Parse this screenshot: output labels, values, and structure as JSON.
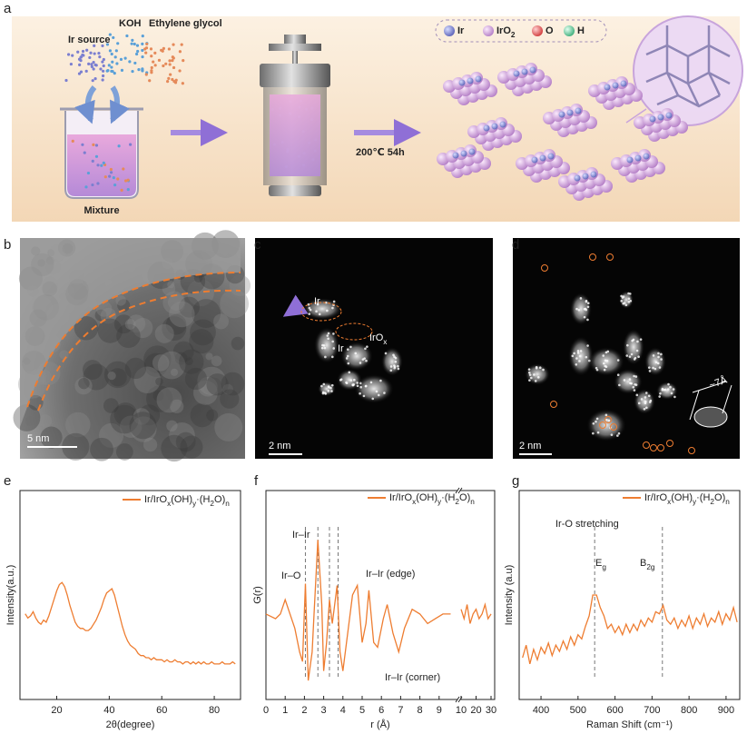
{
  "panel_labels": [
    "a",
    "b",
    "c",
    "d",
    "e",
    "f",
    "g"
  ],
  "schematic": {
    "reagents": [
      "Ir source",
      "KOH",
      "Ethylene glycol"
    ],
    "mixture": "Mixture",
    "condition": "200℃ 54h",
    "legend": [
      "Ir",
      "IrO2",
      "O",
      "H"
    ]
  },
  "micrographs": [
    {
      "scale_bar": "5 nm"
    },
    {
      "scale_bar": "2 nm",
      "labels": [
        "Ir",
        "IrOx",
        "Ir"
      ]
    },
    {
      "scale_bar": "2 nm",
      "labels": [
        "~7Å"
      ]
    }
  ],
  "chart_data": [
    {
      "type": "line",
      "x_label": "2θ(degree)",
      "y_label": "Intensity(a.u.)",
      "xlim": [
        6,
        90
      ],
      "xticks": [
        20,
        40,
        60,
        80
      ],
      "ylim": [
        0,
        100
      ],
      "series": [
        {
          "name": "Ir/IrOx(OH)y·(H2O)n",
          "color": "#ee7d31",
          "x": [
            8,
            9,
            10,
            11,
            12,
            13,
            14,
            15,
            16,
            17,
            18,
            19,
            20,
            21,
            22,
            23,
            24,
            25,
            26,
            27,
            28,
            29,
            30,
            31,
            32,
            33,
            34,
            35,
            36,
            37,
            38,
            39,
            40,
            41,
            42,
            43,
            44,
            45,
            46,
            47,
            48,
            49,
            50,
            51,
            52,
            53,
            54,
            55,
            56,
            57,
            58,
            59,
            60,
            61,
            62,
            63,
            64,
            65,
            66,
            67,
            68,
            69,
            70,
            71,
            72,
            73,
            74,
            75,
            76,
            77,
            78,
            79,
            80,
            81,
            82,
            83,
            84,
            85,
            86,
            87,
            88
          ],
          "values": [
            41,
            39,
            40,
            42,
            39,
            37,
            36,
            38,
            37,
            40,
            44,
            48,
            52,
            55,
            56,
            54,
            50,
            45,
            41,
            37,
            35,
            34,
            34,
            33,
            33,
            34,
            36,
            38,
            41,
            44,
            48,
            51,
            52,
            53,
            50,
            45,
            40,
            35,
            31,
            28,
            26,
            25,
            24,
            22,
            21,
            21,
            20,
            20,
            19,
            20,
            19,
            19,
            19,
            18,
            19,
            18,
            18,
            19,
            18,
            18,
            17,
            18,
            18,
            17,
            18,
            17,
            18,
            17,
            18,
            17,
            17,
            18,
            17,
            17,
            17,
            18,
            17,
            17,
            17,
            18,
            17
          ]
        }
      ]
    },
    {
      "type": "line",
      "x_label": "r (Å)",
      "y_label": "G(r)",
      "xlim": [
        0,
        10
      ],
      "xticks": [
        0,
        1,
        2,
        3,
        4,
        5,
        6,
        7,
        8,
        9
      ],
      "x2lim": [
        10,
        30
      ],
      "x2ticks": [
        10,
        20,
        30
      ],
      "ylim": [
        -1.1,
        1.1
      ],
      "markers": [
        {
          "x": 2.05,
          "label": "Ir–O"
        },
        {
          "x": 2.7,
          "label": "Ir–Ir"
        },
        {
          "x": 3.3,
          "label": "Ir–Ir (edge)"
        },
        {
          "x": 3.75,
          "label": "Ir–Ir (corner)"
        }
      ],
      "series": [
        {
          "name": "Ir/IrOx(OH)y·(H2O)n",
          "color": "#ee7d31",
          "x": [
            0,
            0.5,
            0.75,
            1.0,
            1.25,
            1.5,
            1.75,
            1.9,
            2.05,
            2.2,
            2.4,
            2.5,
            2.7,
            2.9,
            3.0,
            3.15,
            3.3,
            3.45,
            3.7,
            3.85,
            4.0,
            4.25,
            4.5,
            4.75,
            5.0,
            5.2,
            5.35,
            5.6,
            5.8,
            6.1,
            6.3,
            6.6,
            6.9,
            7.2,
            7.6,
            8.0,
            8.4,
            8.8,
            9.2,
            9.6
          ],
          "values": [
            -0.2,
            -0.25,
            -0.2,
            -0.05,
            -0.2,
            -0.35,
            -0.6,
            -0.7,
            0.12,
            -0.9,
            -0.6,
            -0.2,
            0.58,
            -0.1,
            -0.8,
            -0.5,
            -0.05,
            -0.3,
            0.1,
            -0.6,
            -0.8,
            -0.4,
            0.0,
            0.1,
            -0.5,
            -0.3,
            0.05,
            -0.5,
            -0.55,
            -0.25,
            -0.1,
            -0.4,
            -0.6,
            -0.35,
            -0.15,
            -0.2,
            -0.3,
            -0.25,
            -0.2,
            -0.2
          ]
        },
        {
          "axis": "x2",
          "color": "#ee7d31",
          "x": [
            10,
            12,
            14,
            16,
            18,
            20,
            22,
            24,
            26,
            28,
            30
          ],
          "values": [
            -0.15,
            -0.25,
            -0.1,
            -0.3,
            -0.2,
            -0.15,
            -0.25,
            -0.2,
            -0.1,
            -0.25,
            -0.2
          ]
        }
      ]
    },
    {
      "type": "line",
      "x_label": "Raman Shift (cm⁻¹)",
      "y_label": "Intensity (a.u)",
      "xlim": [
        341,
        937
      ],
      "xticks": [
        400,
        500,
        600,
        700,
        800,
        900
      ],
      "ylim": [
        0,
        100
      ],
      "annotation": "Ir-O stretching",
      "markers": [
        {
          "x": 545,
          "label": "Eg"
        },
        {
          "x": 728,
          "label": "B2g"
        }
      ],
      "series": [
        {
          "name": "Ir/IrOx(OH)y·(H2O)n",
          "color": "#ee7d31",
          "x": [
            350,
            360,
            370,
            380,
            390,
            400,
            410,
            420,
            430,
            440,
            450,
            460,
            470,
            480,
            490,
            500,
            510,
            520,
            530,
            540,
            550,
            560,
            570,
            580,
            590,
            600,
            610,
            620,
            630,
            640,
            650,
            660,
            670,
            680,
            690,
            700,
            710,
            720,
            730,
            740,
            750,
            760,
            770,
            780,
            790,
            800,
            810,
            820,
            830,
            840,
            850,
            860,
            870,
            880,
            890,
            900,
            910,
            920,
            930
          ],
          "values": [
            20,
            26,
            17,
            24,
            19,
            25,
            22,
            27,
            21,
            26,
            23,
            28,
            24,
            30,
            26,
            31,
            29,
            35,
            40,
            50,
            50,
            44,
            40,
            34,
            36,
            32,
            35,
            31,
            36,
            32,
            36,
            33,
            38,
            35,
            39,
            37,
            42,
            41,
            45,
            38,
            36,
            39,
            34,
            38,
            35,
            40,
            34,
            39,
            36,
            41,
            35,
            39,
            37,
            42,
            36,
            41,
            38,
            44,
            37
          ]
        }
      ]
    }
  ]
}
